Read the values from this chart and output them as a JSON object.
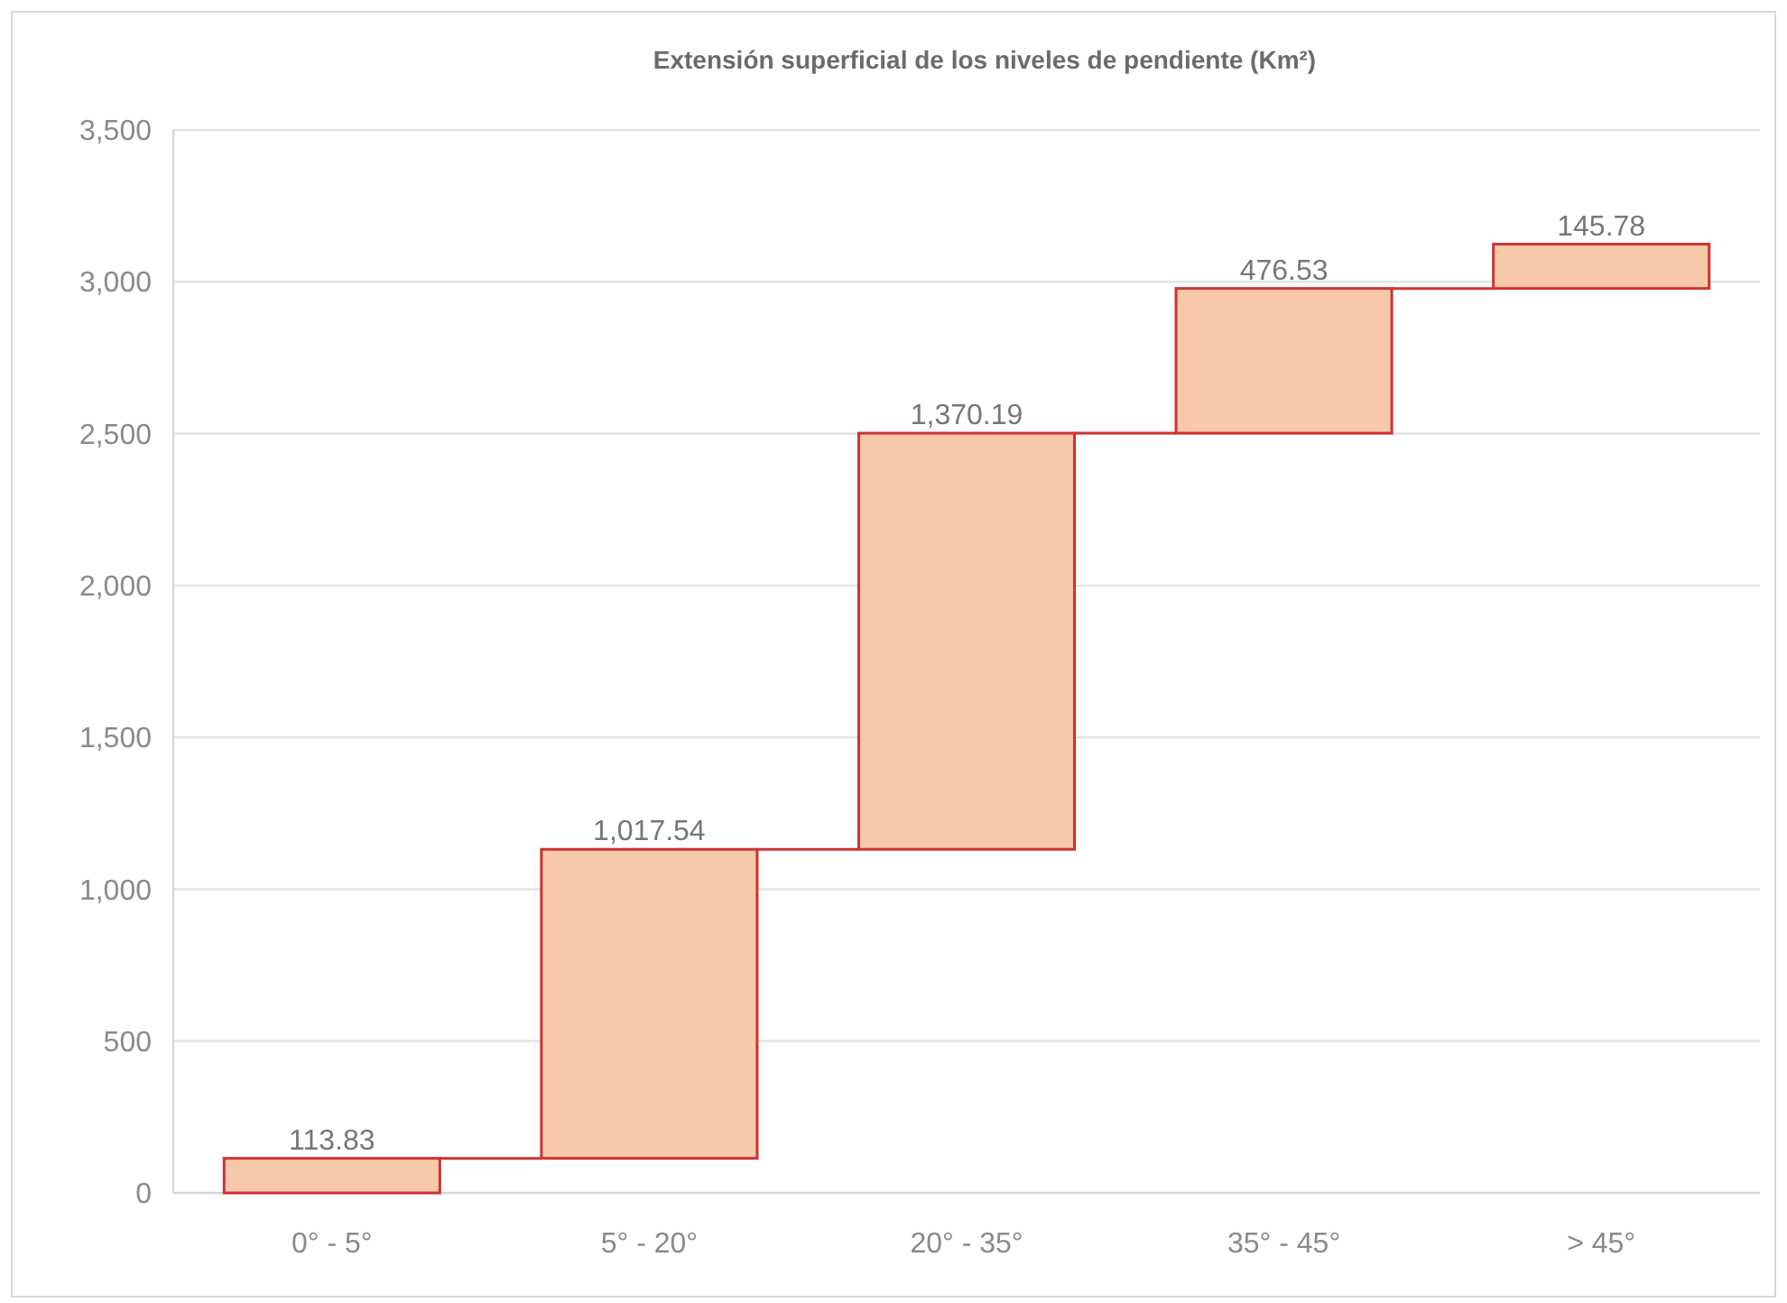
{
  "chart_data": {
    "type": "bar",
    "title": "Extensión superficial de los niveles de pendiente (Km²)",
    "categories": [
      "0° - 5°",
      "5° - 20°",
      "20° - 35°",
      "35° - 45°",
      "> 45°"
    ],
    "values": [
      113.83,
      1017.54,
      1370.19,
      476.53,
      145.78
    ],
    "base": [
      0,
      113.83,
      1131.37,
      2501.56,
      2978.09
    ],
    "value_labels": [
      "113.83",
      "1,017.54",
      "1,370.19",
      "476.53",
      "145.78"
    ],
    "color": "#f7c9a9",
    "ylim": [
      0,
      3500
    ],
    "yticks": [
      0,
      500,
      {
        "value": 1000,
        "label": "1,000"
      },
      {
        "value": 1500,
        "label": "1,500"
      },
      {
        "value": 2000,
        "label": "2,000"
      },
      {
        "value": 2500,
        "label": "2,500"
      },
      {
        "value": 3000,
        "label": "3,000"
      },
      {
        "value": 3500,
        "label": "3,500"
      }
    ],
    "grid": "y"
  }
}
